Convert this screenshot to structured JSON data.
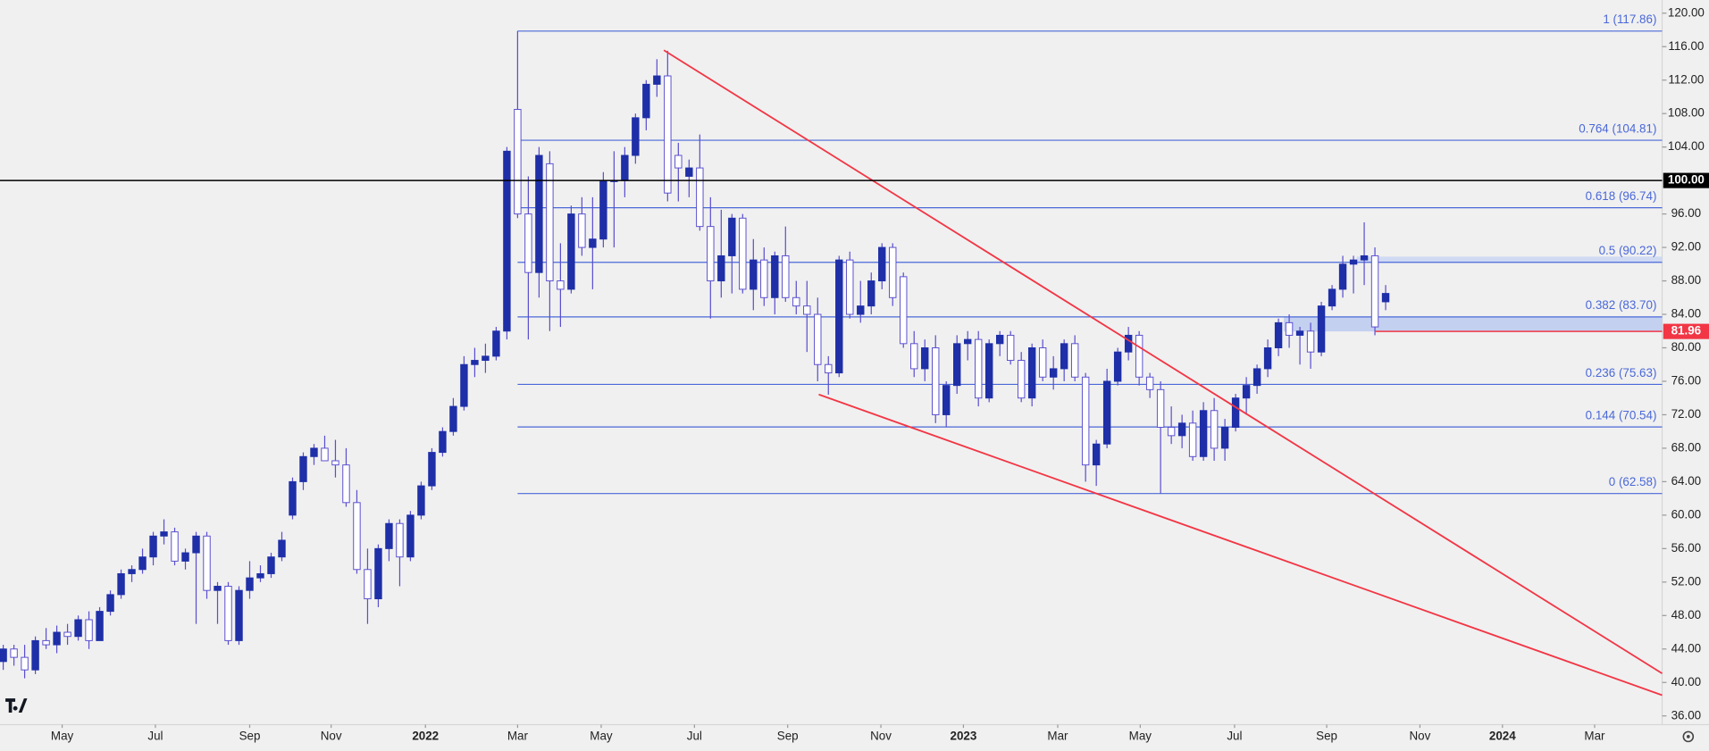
{
  "chart_data": {
    "type": "candlestick",
    "ylim": [
      34.96,
      121.56
    ],
    "yticks": [
      {
        "value": 36,
        "label": "36.00"
      },
      {
        "value": 40,
        "label": "40.00"
      },
      {
        "value": 44,
        "label": "44.00"
      },
      {
        "value": 48,
        "label": "48.00"
      },
      {
        "value": 52,
        "label": "52.00"
      },
      {
        "value": 56,
        "label": "56.00"
      },
      {
        "value": 60,
        "label": "60.00"
      },
      {
        "value": 64,
        "label": "64.00"
      },
      {
        "value": 68,
        "label": "68.00"
      },
      {
        "value": 72,
        "label": "72.00"
      },
      {
        "value": 76,
        "label": "76.00"
      },
      {
        "value": 80,
        "label": "80.00"
      },
      {
        "value": 84,
        "label": "84.00"
      },
      {
        "value": 88,
        "label": "88.00"
      },
      {
        "value": 92,
        "label": "92.00"
      },
      {
        "value": 96,
        "label": "96.00"
      },
      {
        "value": 104,
        "label": "104.00"
      },
      {
        "value": 108,
        "label": "108.00"
      },
      {
        "value": 112,
        "label": "112.00"
      },
      {
        "value": 116,
        "label": "116.00"
      },
      {
        "value": 120,
        "label": "120.00"
      }
    ],
    "xlim": [
      -0.3,
      154.8
    ],
    "xticks": [
      {
        "value": 5.5,
        "label": "May"
      },
      {
        "value": 14.2,
        "label": "Jul"
      },
      {
        "value": 23.0,
        "label": "Sep"
      },
      {
        "value": 30.6,
        "label": "Nov"
      },
      {
        "value": 39.4,
        "label": "2022"
      },
      {
        "value": 48.0,
        "label": "Mar"
      },
      {
        "value": 55.8,
        "label": "May"
      },
      {
        "value": 64.5,
        "label": "Jul"
      },
      {
        "value": 73.2,
        "label": "Sep"
      },
      {
        "value": 81.9,
        "label": "Nov"
      },
      {
        "value": 89.6,
        "label": "2023"
      },
      {
        "value": 98.4,
        "label": "Mar"
      },
      {
        "value": 106.1,
        "label": "May"
      },
      {
        "value": 114.9,
        "label": "Jul"
      },
      {
        "value": 123.5,
        "label": "Sep"
      },
      {
        "value": 132.2,
        "label": "Nov"
      },
      {
        "value": 139.9,
        "label": "2024"
      },
      {
        "value": 148.5,
        "label": "Mar"
      }
    ],
    "up_color": "#1e2fa8",
    "down_color": "#ffffff",
    "wick_color": "#5a4fcf",
    "candles": [
      [
        42.5,
        44.5,
        41.5,
        44
      ],
      [
        44,
        44.5,
        42,
        43
      ],
      [
        43,
        44.5,
        40.5,
        41.5
      ],
      [
        41.5,
        45.5,
        41,
        45
      ],
      [
        45,
        46.5,
        44,
        44.5
      ],
      [
        44.5,
        46.8,
        43.5,
        46
      ],
      [
        46,
        47,
        44.5,
        45.5
      ],
      [
        45.5,
        48,
        45,
        47.5
      ],
      [
        47.5,
        48.5,
        44,
        45
      ],
      [
        45,
        49,
        45,
        48.5
      ],
      [
        48.5,
        51,
        48,
        50.5
      ],
      [
        50.5,
        53.5,
        50,
        53
      ],
      [
        53,
        54,
        52,
        53.5
      ],
      [
        53.5,
        56,
        53,
        55
      ],
      [
        55,
        58,
        54,
        57.5
      ],
      [
        57.5,
        59.5,
        56.5,
        58
      ],
      [
        58,
        58.5,
        54,
        54.5
      ],
      [
        54.5,
        56,
        53.5,
        55.5
      ],
      [
        55.5,
        58,
        47,
        57.5
      ],
      [
        57.5,
        58,
        50,
        51
      ],
      [
        51,
        52,
        47,
        51.5
      ],
      [
        51.5,
        52,
        44.5,
        45
      ],
      [
        45,
        51.5,
        44.5,
        51
      ],
      [
        51,
        54.5,
        50,
        52.5
      ],
      [
        52.5,
        54,
        52,
        53
      ],
      [
        53,
        55.5,
        52.5,
        55
      ],
      [
        55,
        58,
        54.5,
        57
      ],
      [
        60,
        64.5,
        59.5,
        64
      ],
      [
        64,
        67.5,
        63,
        67
      ],
      [
        67,
        68.5,
        66,
        68
      ],
      [
        68,
        69.5,
        66.5,
        66.5
      ],
      [
        66.5,
        69,
        64.5,
        66
      ],
      [
        66,
        68,
        61,
        61.5
      ],
      [
        61.5,
        63,
        53,
        53.5
      ],
      [
        53.5,
        56,
        47,
        50
      ],
      [
        50,
        56.5,
        49,
        56
      ],
      [
        56,
        59.5,
        54.5,
        59
      ],
      [
        59,
        59.5,
        51.5,
        55
      ],
      [
        55,
        60.5,
        54.5,
        60
      ],
      [
        60,
        64,
        59.5,
        63.5
      ],
      [
        63.5,
        68,
        63,
        67.5
      ],
      [
        67.5,
        70.5,
        67,
        70
      ],
      [
        70,
        74,
        69.5,
        73
      ],
      [
        73,
        79,
        72.5,
        78
      ],
      [
        78,
        80,
        76.5,
        78.5
      ],
      [
        78.5,
        80.5,
        77,
        79
      ],
      [
        79,
        82.5,
        78.5,
        82
      ],
      [
        82,
        104,
        81,
        103.5
      ],
      [
        108.5,
        117.86,
        95.5,
        96
      ],
      [
        96,
        100.5,
        81,
        89
      ],
      [
        89,
        104,
        86,
        103
      ],
      [
        102,
        103.5,
        82,
        88
      ],
      [
        88,
        92.5,
        82.5,
        87
      ],
      [
        87,
        97,
        86.5,
        96
      ],
      [
        96,
        98,
        91,
        92
      ],
      [
        92,
        98,
        87,
        93
      ],
      [
        93,
        101,
        92,
        100
      ],
      [
        100,
        103.5,
        92,
        100
      ],
      [
        100,
        104,
        98,
        103
      ],
      [
        103,
        108,
        102,
        107.5
      ],
      [
        107.5,
        112,
        106,
        111.5
      ],
      [
        111.5,
        114.5,
        110,
        112.5
      ],
      [
        112.5,
        115.5,
        97.5,
        98.5
      ],
      [
        103,
        104.5,
        97.5,
        101.5
      ],
      [
        100.5,
        102.5,
        98,
        101.5
      ],
      [
        101.5,
        105.5,
        94,
        94.5
      ],
      [
        94.5,
        98,
        83.5,
        88
      ],
      [
        88,
        96.5,
        86,
        91
      ],
      [
        91,
        96,
        86.5,
        95.5
      ],
      [
        95.5,
        96,
        86.5,
        87
      ],
      [
        87,
        93,
        84.5,
        90.5
      ],
      [
        90.5,
        92,
        85,
        86
      ],
      [
        86,
        91.5,
        84,
        91
      ],
      [
        91,
        94.5,
        85.5,
        86
      ],
      [
        86,
        88,
        84,
        85
      ],
      [
        85,
        88,
        79.5,
        84
      ],
      [
        84,
        86,
        76,
        78
      ],
      [
        78,
        79,
        74.4,
        77
      ],
      [
        77,
        91,
        76.5,
        90.5
      ],
      [
        90.5,
        91.5,
        83.5,
        84
      ],
      [
        84,
        88,
        83,
        85
      ],
      [
        85,
        89,
        84,
        88
      ],
      [
        88,
        92.5,
        87,
        92
      ],
      [
        92,
        92.5,
        85,
        86
      ],
      [
        88.5,
        89,
        80,
        80.5
      ],
      [
        80.5,
        82,
        76.5,
        77.5
      ],
      [
        77.5,
        81,
        76,
        80
      ],
      [
        80,
        81.5,
        71,
        72
      ],
      [
        72,
        76,
        70.5,
        75.5
      ],
      [
        75.5,
        81.5,
        74.5,
        80.5
      ],
      [
        80.5,
        82,
        78.5,
        81
      ],
      [
        81,
        82,
        73,
        74
      ],
      [
        74,
        81,
        73.5,
        80.5
      ],
      [
        80.5,
        82,
        79,
        81.5
      ],
      [
        81.5,
        82,
        78,
        78.5
      ],
      [
        78.5,
        79.5,
        73.5,
        74
      ],
      [
        74,
        80.5,
        73,
        80
      ],
      [
        80,
        81,
        76,
        76.5
      ],
      [
        76.5,
        79,
        75,
        77.5
      ],
      [
        77.5,
        81,
        76,
        80.5
      ],
      [
        80.5,
        81.5,
        76,
        76.5
      ],
      [
        76.5,
        77,
        64,
        66
      ],
      [
        66,
        69,
        63.5,
        68.5
      ],
      [
        68.5,
        77.5,
        68,
        76
      ],
      [
        76,
        80,
        75.5,
        79.5
      ],
      [
        79.5,
        82.5,
        78.5,
        81.5
      ],
      [
        81.5,
        82,
        75.5,
        76.5
      ],
      [
        76.5,
        77,
        74,
        75
      ],
      [
        75,
        76,
        62.58,
        70.5
      ],
      [
        70.5,
        73,
        68.5,
        69.5
      ],
      [
        69.5,
        72,
        68,
        71
      ],
      [
        71,
        72.5,
        66.5,
        67
      ],
      [
        67,
        73.5,
        66.5,
        72.5
      ],
      [
        72.5,
        74,
        66.5,
        68
      ],
      [
        68,
        71.5,
        66.5,
        70.5
      ],
      [
        70.5,
        74.5,
        70,
        74
      ],
      [
        74,
        76.5,
        72,
        75.5
      ],
      [
        75.5,
        78,
        74.5,
        77.5
      ],
      [
        77.5,
        81,
        76.5,
        80
      ],
      [
        80,
        83.5,
        79,
        83
      ],
      [
        83,
        84,
        80,
        81.5
      ],
      [
        81.5,
        82.5,
        78,
        82
      ],
      [
        82,
        83,
        77.5,
        79.5
      ],
      [
        79.5,
        85.5,
        79,
        85
      ],
      [
        85,
        87.5,
        84.5,
        87
      ],
      [
        87,
        91,
        86,
        90
      ],
      [
        90,
        91,
        86.5,
        90.5
      ],
      [
        90.5,
        95,
        87.5,
        91
      ],
      [
        91,
        92,
        81.5,
        82.5
      ],
      [
        85.5,
        87.5,
        84.5,
        86.5
      ]
    ],
    "fib_start": 48,
    "fib_levels": [
      {
        "value": 117.86,
        "label": "1 (117.86)"
      },
      {
        "value": 104.81,
        "label": "0.764 (104.81)"
      },
      {
        "value": 96.74,
        "label": "0.618 (96.74)"
      },
      {
        "value": 90.22,
        "label": "0.5 (90.22)"
      },
      {
        "value": 83.7,
        "label": "0.382 (83.70)"
      },
      {
        "value": 75.63,
        "label": "0.236 (75.63)"
      },
      {
        "value": 70.54,
        "label": "0.144 (70.54)"
      },
      {
        "value": 62.58,
        "label": "0 (62.58)"
      }
    ],
    "fib_color": "#4a68d8",
    "trendlines": [
      {
        "x": [
          61.65,
          154.8
        ],
        "y": [
          115.57,
          41.08
        ],
        "color": "#f23645"
      },
      {
        "x": [
          76.1,
          154.8
        ],
        "y": [
          74.42,
          38.48
        ],
        "color": "#f23645"
      }
    ],
    "zones": [
      {
        "x": [
          119.5,
          154.8
        ],
        "y": [
          81.96,
          83.7
        ],
        "color": "#b8c8f0"
      },
      {
        "x": [
          126.3,
          154.8
        ],
        "y": [
          90.22,
          90.9
        ],
        "color": "#c8d4f4"
      }
    ],
    "price_lines": [
      {
        "value": 100,
        "label": "100.00",
        "color": "#000000",
        "x_from": -0.3
      },
      {
        "value": 81.96,
        "label": "81.96",
        "color": "#f23645",
        "x_from": 128
      }
    ]
  }
}
